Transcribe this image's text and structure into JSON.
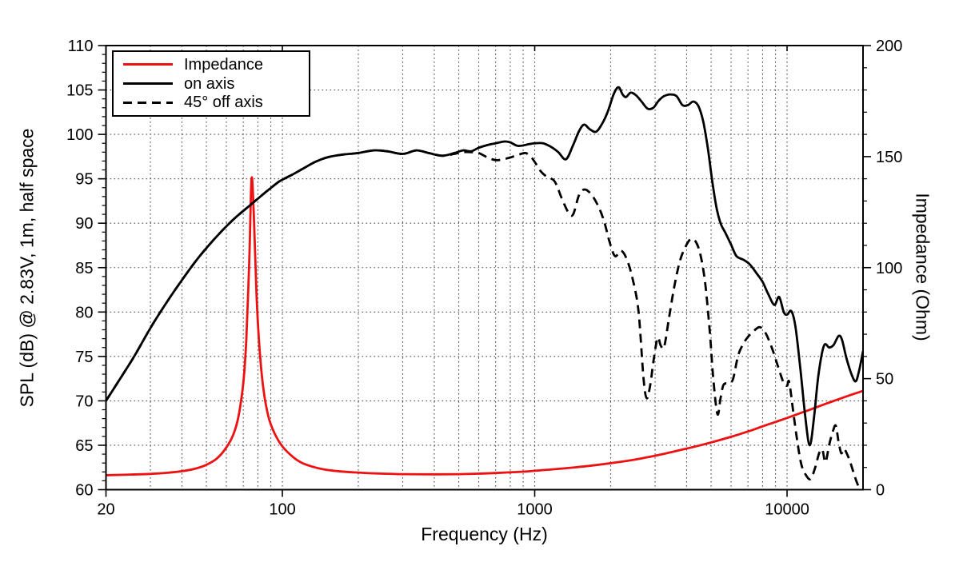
{
  "chart_data": {
    "type": "line",
    "title": "",
    "x_axis": {
      "label": "Frequency (Hz)",
      "scale": "log",
      "min": 20,
      "max": 20000,
      "major_ticks": [
        20,
        100,
        1000,
        10000
      ],
      "minor_ticks": [
        30,
        40,
        50,
        60,
        70,
        80,
        90,
        100,
        200,
        300,
        400,
        500,
        600,
        700,
        800,
        900,
        1000,
        2000,
        3000,
        4000,
        5000,
        6000,
        7000,
        8000,
        9000,
        10000
      ]
    },
    "y_axis_left": {
      "label": "SPL (dB) @ 2.83V, 1m, half space",
      "min": 60,
      "max": 110,
      "major_ticks": [
        60,
        65,
        70,
        75,
        80,
        85,
        90,
        95,
        100,
        105,
        110
      ],
      "minor_step": 1
    },
    "y_axis_right": {
      "label": "Impedance (Ohm)",
      "min": 0,
      "max": 200,
      "major_ticks": [
        0,
        50,
        100,
        150,
        200
      ],
      "minor_step": 10
    },
    "grid": {
      "style": "dotted",
      "vertical_hz": [
        30,
        40,
        50,
        60,
        70,
        80,
        90,
        100,
        200,
        300,
        400,
        500,
        600,
        700,
        800,
        900,
        1000,
        2000,
        3000,
        4000,
        5000,
        6000,
        7000,
        8000,
        9000,
        10000
      ],
      "horizontal_db": [
        65,
        70,
        75,
        80,
        85,
        90,
        95,
        100,
        105
      ]
    },
    "legend": {
      "position": "top-left",
      "entries": [
        {
          "label": "Impedance",
          "color": "#ee1111",
          "line_style": "solid"
        },
        {
          "label": "on axis",
          "color": "#000000",
          "line_style": "solid"
        },
        {
          "label": "45° off axis",
          "color": "#000000",
          "line_style": "dashed"
        }
      ]
    },
    "series": [
      {
        "name": "Impedance",
        "y_axis": "right",
        "unit": "Ohm",
        "color": "#ee1111",
        "line_style": "solid",
        "points": [
          [
            20,
            6.5
          ],
          [
            25,
            6.8
          ],
          [
            30,
            7.1
          ],
          [
            35,
            7.6
          ],
          [
            40,
            8.3
          ],
          [
            45,
            9.4
          ],
          [
            50,
            11.2
          ],
          [
            55,
            14
          ],
          [
            60,
            19
          ],
          [
            64,
            25
          ],
          [
            67,
            33
          ],
          [
            70,
            48
          ],
          [
            72,
            68
          ],
          [
            74,
            105
          ],
          [
            75.5,
            140
          ],
          [
            77,
            125
          ],
          [
            79,
            88
          ],
          [
            81,
            65
          ],
          [
            84,
            46
          ],
          [
            88,
            33
          ],
          [
            93,
            25.5
          ],
          [
            100,
            19.5
          ],
          [
            110,
            14.8
          ],
          [
            120,
            12
          ],
          [
            135,
            10
          ],
          [
            150,
            8.9
          ],
          [
            170,
            8.2
          ],
          [
            200,
            7.7
          ],
          [
            250,
            7.2
          ],
          [
            300,
            7.0
          ],
          [
            400,
            6.9
          ],
          [
            500,
            7.0
          ],
          [
            600,
            7.2
          ],
          [
            700,
            7.5
          ],
          [
            800,
            7.8
          ],
          [
            900,
            8.1
          ],
          [
            1000,
            8.5
          ],
          [
            1200,
            9.2
          ],
          [
            1400,
            9.9
          ],
          [
            1700,
            10.9
          ],
          [
            2000,
            11.9
          ],
          [
            2400,
            13.2
          ],
          [
            2800,
            14.6
          ],
          [
            3300,
            16.3
          ],
          [
            3900,
            18.2
          ],
          [
            4500,
            19.9
          ],
          [
            5200,
            21.8
          ],
          [
            6000,
            23.8
          ],
          [
            7000,
            26.2
          ],
          [
            8000,
            28.5
          ],
          [
            9000,
            30.5
          ],
          [
            10000,
            32.3
          ],
          [
            11500,
            34.8
          ],
          [
            13000,
            37
          ],
          [
            15000,
            39.6
          ],
          [
            17000,
            41.8
          ],
          [
            20000,
            44.5
          ]
        ]
      },
      {
        "name": "on axis",
        "y_axis": "left",
        "unit": "dB",
        "color": "#000000",
        "line_style": "solid",
        "points": [
          [
            20,
            70.0
          ],
          [
            23,
            72.7
          ],
          [
            26,
            75.1
          ],
          [
            30,
            78.2
          ],
          [
            35,
            81.2
          ],
          [
            40,
            83.6
          ],
          [
            45,
            85.6
          ],
          [
            50,
            87.2
          ],
          [
            57,
            89.0
          ],
          [
            65,
            90.6
          ],
          [
            75,
            92.1
          ],
          [
            85,
            93.4
          ],
          [
            95,
            94.5
          ],
          [
            100,
            94.9
          ],
          [
            110,
            95.5
          ],
          [
            120,
            96.1
          ],
          [
            135,
            96.9
          ],
          [
            150,
            97.4
          ],
          [
            170,
            97.7
          ],
          [
            200,
            97.9
          ],
          [
            230,
            98.2
          ],
          [
            260,
            98.1
          ],
          [
            300,
            97.8
          ],
          [
            340,
            98.2
          ],
          [
            380,
            97.9
          ],
          [
            430,
            97.6
          ],
          [
            480,
            97.9
          ],
          [
            520,
            98.2
          ],
          [
            560,
            98.1
          ],
          [
            600,
            98.5
          ],
          [
            650,
            98.8
          ],
          [
            700,
            99.0
          ],
          [
            760,
            99.2
          ],
          [
            800,
            99.1
          ],
          [
            860,
            98.7
          ],
          [
            950,
            98.9
          ],
          [
            1000,
            99.0
          ],
          [
            1080,
            99.0
          ],
          [
            1160,
            98.6
          ],
          [
            1240,
            98.0
          ],
          [
            1330,
            97.2
          ],
          [
            1420,
            98.8
          ],
          [
            1500,
            100.4
          ],
          [
            1570,
            101.1
          ],
          [
            1650,
            100.6
          ],
          [
            1750,
            100.3
          ],
          [
            1850,
            101.2
          ],
          [
            1950,
            102.6
          ],
          [
            2060,
            104.6
          ],
          [
            2150,
            105.3
          ],
          [
            2230,
            104.5
          ],
          [
            2300,
            104.2
          ],
          [
            2400,
            104.7
          ],
          [
            2520,
            104.4
          ],
          [
            2650,
            103.7
          ],
          [
            2800,
            102.9
          ],
          [
            2950,
            103.0
          ],
          [
            3100,
            103.8
          ],
          [
            3250,
            104.3
          ],
          [
            3450,
            104.5
          ],
          [
            3650,
            104.3
          ],
          [
            3850,
            103.3
          ],
          [
            4050,
            103.3
          ],
          [
            4250,
            103.7
          ],
          [
            4450,
            103.2
          ],
          [
            4650,
            101.5
          ],
          [
            4850,
            98.5
          ],
          [
            5050,
            94.8
          ],
          [
            5250,
            91.8
          ],
          [
            5450,
            90.0
          ],
          [
            5700,
            88.9
          ],
          [
            6000,
            87.6
          ],
          [
            6300,
            86.3
          ],
          [
            6700,
            85.9
          ],
          [
            7100,
            85.4
          ],
          [
            7600,
            84.3
          ],
          [
            8000,
            83.4
          ],
          [
            8400,
            82.1
          ],
          [
            8900,
            80.8
          ],
          [
            9300,
            81.7
          ],
          [
            9700,
            80.0
          ],
          [
            10000,
            79.7
          ],
          [
            10400,
            80.1
          ],
          [
            10800,
            78.3
          ],
          [
            11300,
            73.5
          ],
          [
            11800,
            68.3
          ],
          [
            12300,
            65.0
          ],
          [
            12800,
            68.2
          ],
          [
            13300,
            72.8
          ],
          [
            14000,
            76.2
          ],
          [
            14700,
            76.0
          ],
          [
            15300,
            76.3
          ],
          [
            16000,
            77.3
          ],
          [
            16500,
            76.9
          ],
          [
            17200,
            74.8
          ],
          [
            18000,
            73.0
          ],
          [
            18700,
            72.2
          ],
          [
            19300,
            73.4
          ],
          [
            20000,
            75.6
          ]
        ]
      },
      {
        "name": "45° off axis",
        "y_axis": "left",
        "unit": "dB",
        "color": "#000000",
        "line_style": "dashed",
        "points": [
          [
            20,
            70.0
          ],
          [
            23,
            72.7
          ],
          [
            26,
            75.1
          ],
          [
            30,
            78.2
          ],
          [
            35,
            81.2
          ],
          [
            40,
            83.6
          ],
          [
            45,
            85.6
          ],
          [
            50,
            87.2
          ],
          [
            57,
            89.0
          ],
          [
            65,
            90.6
          ],
          [
            75,
            92.1
          ],
          [
            85,
            93.4
          ],
          [
            95,
            94.5
          ],
          [
            100,
            94.9
          ],
          [
            110,
            95.5
          ],
          [
            120,
            96.1
          ],
          [
            135,
            96.9
          ],
          [
            150,
            97.4
          ],
          [
            170,
            97.7
          ],
          [
            200,
            97.9
          ],
          [
            230,
            98.2
          ],
          [
            260,
            98.1
          ],
          [
            300,
            97.8
          ],
          [
            340,
            98.2
          ],
          [
            380,
            97.9
          ],
          [
            430,
            97.6
          ],
          [
            480,
            97.8
          ],
          [
            520,
            98.0
          ],
          [
            560,
            98.0
          ],
          [
            600,
            97.9
          ],
          [
            650,
            97.4
          ],
          [
            700,
            97.1
          ],
          [
            750,
            97.2
          ],
          [
            800,
            97.4
          ],
          [
            860,
            97.7
          ],
          [
            920,
            97.9
          ],
          [
            970,
            97.4
          ],
          [
            1000,
            96.9
          ],
          [
            1060,
            95.8
          ],
          [
            1120,
            95.2
          ],
          [
            1200,
            94.7
          ],
          [
            1280,
            92.8
          ],
          [
            1360,
            91.2
          ],
          [
            1420,
            91.0
          ],
          [
            1500,
            93.2
          ],
          [
            1580,
            93.8
          ],
          [
            1680,
            93.2
          ],
          [
            1780,
            92.0
          ],
          [
            1880,
            90.3
          ],
          [
            1980,
            87.9
          ],
          [
            2080,
            86.3
          ],
          [
            2200,
            86.9
          ],
          [
            2320,
            85.9
          ],
          [
            2450,
            83.6
          ],
          [
            2580,
            80.0
          ],
          [
            2700,
            72.5
          ],
          [
            2780,
            70.3
          ],
          [
            2870,
            71.8
          ],
          [
            2960,
            74.6
          ],
          [
            3070,
            77.1
          ],
          [
            3160,
            76.2
          ],
          [
            3260,
            76.1
          ],
          [
            3400,
            79.2
          ],
          [
            3560,
            82.6
          ],
          [
            3750,
            85.6
          ],
          [
            3950,
            87.3
          ],
          [
            4150,
            88.2
          ],
          [
            4350,
            87.9
          ],
          [
            4550,
            86.3
          ],
          [
            4750,
            83.0
          ],
          [
            4950,
            77.5
          ],
          [
            5100,
            72.5
          ],
          [
            5300,
            68.5
          ],
          [
            5450,
            70.3
          ],
          [
            5600,
            71.8
          ],
          [
            5850,
            72.0
          ],
          [
            6100,
            72.4
          ],
          [
            6400,
            75.1
          ],
          [
            6700,
            76.4
          ],
          [
            7000,
            77.2
          ],
          [
            7400,
            77.9
          ],
          [
            7800,
            78.3
          ],
          [
            8200,
            77.7
          ],
          [
            8700,
            76.0
          ],
          [
            9200,
            73.9
          ],
          [
            9700,
            72.0
          ],
          [
            10000,
            71.7
          ],
          [
            10200,
            72.1
          ],
          [
            10600,
            68.6
          ],
          [
            11000,
            65.3
          ],
          [
            11400,
            62.8
          ],
          [
            11900,
            61.6
          ],
          [
            12400,
            61.2
          ],
          [
            12900,
            62.4
          ],
          [
            13400,
            64.1
          ],
          [
            13800,
            64.5
          ],
          [
            14200,
            63.1
          ],
          [
            14700,
            65.1
          ],
          [
            15200,
            66.6
          ],
          [
            15600,
            67.2
          ],
          [
            16000,
            65.4
          ],
          [
            16400,
            64.1
          ],
          [
            16800,
            64.6
          ],
          [
            17300,
            64.0
          ],
          [
            17800,
            63.1
          ],
          [
            18500,
            61.6
          ],
          [
            19200,
            60.4
          ],
          [
            19900,
            60.1
          ]
        ]
      }
    ]
  }
}
